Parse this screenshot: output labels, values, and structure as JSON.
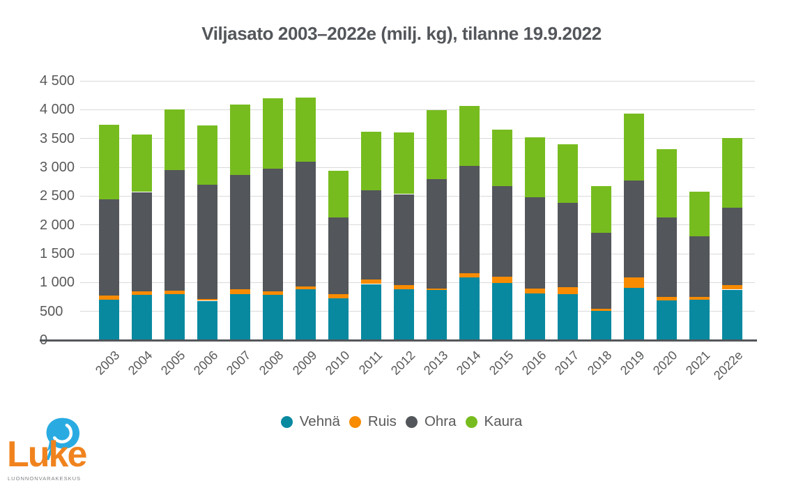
{
  "title": "Viljasato 2003–2022e (milj. kg), tilanne 19.9.2022",
  "colors": {
    "background": "#ffffff",
    "title_text": "#53565a",
    "axis_text": "#58595b",
    "gridline": "#d9d9d9",
    "axis_line": "#53565a",
    "vehna_teal": "#0889a0",
    "ruis_orange": "#f98b00",
    "ohra_gray": "#53565a",
    "kaura_green": "#77bc1f",
    "logo_orange": "#f0831e",
    "logo_blue": "#29abe2"
  },
  "chart_data": {
    "type": "bar",
    "stacked": true,
    "title": "Viljasato 2003–2022e (milj. kg), tilanne 19.9.2022",
    "unit": "milj. kg",
    "xlabel": "",
    "ylabel": "",
    "ylim": [
      0,
      4500
    ],
    "ytick_step": 500,
    "ytick_labels": [
      "0",
      "500",
      "1 000",
      "1 500",
      "2 000",
      "2 500",
      "3 000",
      "3 500",
      "4 000",
      "4 500"
    ],
    "grid": true,
    "legend_position": "bottom",
    "categories": [
      "2003",
      "2004",
      "2005",
      "2006",
      "2007",
      "2008",
      "2009",
      "2010",
      "2011",
      "2012",
      "2013",
      "2014",
      "2015",
      "2016",
      "2017",
      "2018",
      "2019",
      "2020",
      "2021",
      "2022e"
    ],
    "series": [
      {
        "name": "Vehnä",
        "key": "vehna",
        "color": "#0889a0",
        "values": [
          699,
          782,
          801,
          684,
          797,
          787,
          887,
          724,
          974,
          887,
          869,
          1089,
          992,
          812,
          802,
          504,
          908,
          687,
          697,
          877
        ]
      },
      {
        "name": "Ruis",
        "key": "ruis",
        "color": "#f98b00",
        "values": [
          74,
          64,
          54,
          25,
          87,
          64,
          42,
          69,
          78,
          66,
          26,
          75,
          108,
          87,
          112,
          43,
          184,
          69,
          54,
          74
        ]
      },
      {
        "name": "Ohra",
        "key": "ohra",
        "color": "#53565a",
        "values": [
          1672,
          1725,
          2103,
          1991,
          1984,
          2129,
          2171,
          1340,
          1550,
          1581,
          1904,
          1859,
          1569,
          1577,
          1467,
          1313,
          1682,
          1373,
          1046,
          1344
        ]
      },
      {
        "name": "Kaura",
        "key": "kaura",
        "color": "#77bc1f",
        "values": [
          1288,
          1002,
          1052,
          1030,
          1222,
          1213,
          1114,
          810,
          1020,
          1073,
          1197,
          1043,
          980,
          1040,
          1014,
          818,
          1159,
          1191,
          775,
          1215
        ]
      }
    ],
    "totals": [
      3733,
      3573,
      4010,
      3730,
      4090,
      4193,
      4214,
      2943,
      3622,
      3607,
      3996,
      4066,
      3649,
      3516,
      3395,
      2678,
      3933,
      3320,
      2572,
      3510
    ]
  },
  "logo": {
    "wordmark": "Luke",
    "subtitle": "LUONNONVARAKESKUS"
  }
}
